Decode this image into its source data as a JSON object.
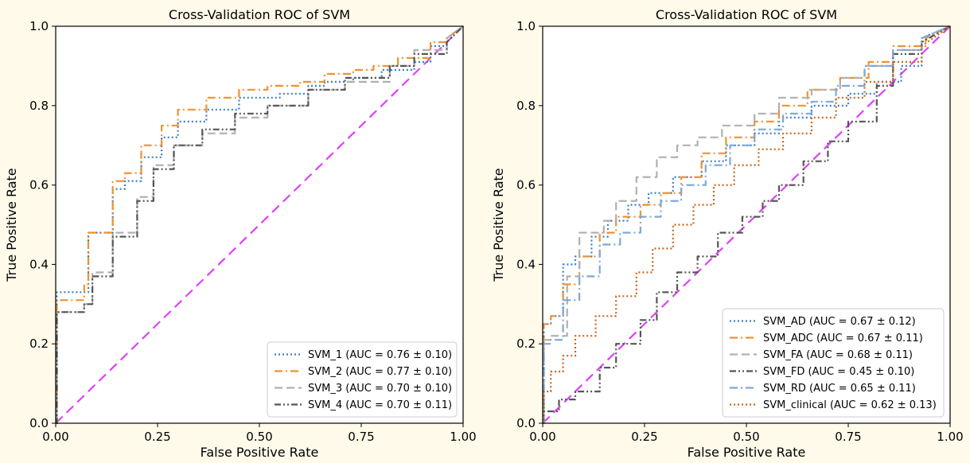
{
  "chart_data": [
    {
      "type": "line",
      "title": "Cross-Validation ROC of SVM",
      "xlabel": "False Positive Rate",
      "ylabel": "True Positive Rate",
      "xlim": [
        0,
        1
      ],
      "ylim": [
        0,
        1
      ],
      "xticks": [
        "0.00",
        "0.25",
        "0.50",
        "0.75",
        "1.00"
      ],
      "yticks": [
        "0.0",
        "0.2",
        "0.4",
        "0.6",
        "0.8",
        "1.0"
      ],
      "grid": false,
      "legend_position": "lower-right",
      "chance_line": {
        "color": "#e040fb",
        "x": [
          0,
          1
        ],
        "y": [
          0,
          1
        ]
      },
      "series": [
        {
          "name": "SVM_1 (AUC = 0.76 ± 0.10)",
          "color": "#3b7dc4",
          "dash": "dotted",
          "x": [
            0,
            0.003,
            0.003,
            0.04,
            0.04,
            0.08,
            0.08,
            0.14,
            0.14,
            0.17,
            0.17,
            0.21,
            0.21,
            0.26,
            0.26,
            0.3,
            0.3,
            0.37,
            0.37,
            0.45,
            0.45,
            0.55,
            0.55,
            0.62,
            0.62,
            0.66,
            0.66,
            0.73,
            0.73,
            0.8,
            0.8,
            0.88,
            0.88,
            0.92,
            0.92,
            0.96,
            0.96,
            1.0
          ],
          "y": [
            0,
            0,
            0.33,
            0.33,
            0.33,
            0.33,
            0.48,
            0.48,
            0.59,
            0.59,
            0.61,
            0.61,
            0.67,
            0.67,
            0.72,
            0.72,
            0.76,
            0.76,
            0.79,
            0.79,
            0.82,
            0.82,
            0.83,
            0.83,
            0.85,
            0.85,
            0.86,
            0.86,
            0.87,
            0.87,
            0.89,
            0.89,
            0.91,
            0.91,
            0.95,
            0.95,
            0.97,
            1.0
          ]
        },
        {
          "name": "SVM_2 (AUC = 0.77 ± 0.10)",
          "color": "#f0922e",
          "dash": "dashdot",
          "x": [
            0,
            0.003,
            0.003,
            0.07,
            0.07,
            0.08,
            0.08,
            0.14,
            0.14,
            0.17,
            0.17,
            0.21,
            0.21,
            0.26,
            0.26,
            0.3,
            0.3,
            0.37,
            0.37,
            0.45,
            0.45,
            0.52,
            0.52,
            0.6,
            0.6,
            0.66,
            0.66,
            0.73,
            0.73,
            0.78,
            0.78,
            0.84,
            0.84,
            0.92,
            0.92,
            0.96,
            0.96,
            1.0
          ],
          "y": [
            0,
            0,
            0.31,
            0.31,
            0.35,
            0.35,
            0.48,
            0.48,
            0.61,
            0.61,
            0.63,
            0.63,
            0.7,
            0.7,
            0.75,
            0.75,
            0.79,
            0.79,
            0.82,
            0.82,
            0.84,
            0.84,
            0.85,
            0.85,
            0.86,
            0.86,
            0.88,
            0.88,
            0.89,
            0.89,
            0.9,
            0.9,
            0.92,
            0.92,
            0.96,
            0.96,
            0.97,
            1.0
          ]
        },
        {
          "name": "SVM_3 (AUC = 0.70 ± 0.10)",
          "color": "#b0b0b0",
          "dash": "dashed",
          "x": [
            0,
            0.003,
            0.003,
            0.07,
            0.07,
            0.09,
            0.09,
            0.14,
            0.14,
            0.2,
            0.2,
            0.24,
            0.24,
            0.29,
            0.29,
            0.36,
            0.36,
            0.44,
            0.44,
            0.52,
            0.52,
            0.62,
            0.62,
            0.71,
            0.71,
            0.82,
            0.82,
            0.88,
            0.88,
            0.96,
            0.96,
            1.0
          ],
          "y": [
            0,
            0,
            0.28,
            0.28,
            0.3,
            0.3,
            0.38,
            0.38,
            0.48,
            0.48,
            0.57,
            0.57,
            0.65,
            0.65,
            0.7,
            0.7,
            0.73,
            0.73,
            0.77,
            0.77,
            0.8,
            0.8,
            0.84,
            0.84,
            0.86,
            0.86,
            0.9,
            0.9,
            0.94,
            0.94,
            0.97,
            1.0
          ]
        },
        {
          "name": "SVM_4 (AUC = 0.70 ± 0.11)",
          "color": "#555555",
          "dash": "dashdotdot",
          "x": [
            0,
            0.003,
            0.003,
            0.07,
            0.07,
            0.09,
            0.09,
            0.14,
            0.14,
            0.2,
            0.2,
            0.24,
            0.24,
            0.29,
            0.29,
            0.36,
            0.36,
            0.44,
            0.44,
            0.52,
            0.52,
            0.62,
            0.62,
            0.71,
            0.71,
            0.82,
            0.82,
            0.88,
            0.88,
            0.96,
            0.96,
            1.0
          ],
          "y": [
            0,
            0,
            0.28,
            0.28,
            0.3,
            0.3,
            0.37,
            0.37,
            0.47,
            0.47,
            0.56,
            0.56,
            0.64,
            0.64,
            0.7,
            0.7,
            0.74,
            0.74,
            0.78,
            0.78,
            0.8,
            0.8,
            0.84,
            0.84,
            0.87,
            0.87,
            0.9,
            0.9,
            0.93,
            0.93,
            0.96,
            1.0
          ]
        }
      ]
    },
    {
      "type": "line",
      "title": "Cross-Validation ROC of SVM",
      "xlabel": "False Positive Rate",
      "ylabel": "True Positive Rate",
      "xlim": [
        0,
        1
      ],
      "ylim": [
        0,
        1
      ],
      "xticks": [
        "0.00",
        "0.25",
        "0.50",
        "0.75",
        "1.00"
      ],
      "yticks": [
        "0.0",
        "0.2",
        "0.4",
        "0.6",
        "0.8",
        "1.0"
      ],
      "grid": false,
      "legend_position": "lower-right",
      "chance_line": {
        "color": "#e040fb",
        "x": [
          0,
          1
        ],
        "y": [
          0,
          1
        ]
      },
      "series": [
        {
          "name": "SVM_AD (AUC = 0.67 ± 0.12)",
          "color": "#3b7dc4",
          "dash": "dotted",
          "x": [
            0,
            0.003,
            0.003,
            0.02,
            0.02,
            0.05,
            0.05,
            0.08,
            0.08,
            0.12,
            0.12,
            0.16,
            0.16,
            0.21,
            0.21,
            0.26,
            0.26,
            0.32,
            0.32,
            0.39,
            0.39,
            0.45,
            0.45,
            0.52,
            0.52,
            0.58,
            0.58,
            0.66,
            0.66,
            0.75,
            0.75,
            0.82,
            0.82,
            0.88,
            0.88,
            0.93,
            0.93,
            1.0
          ],
          "y": [
            0,
            0,
            0.25,
            0.25,
            0.27,
            0.27,
            0.4,
            0.4,
            0.42,
            0.42,
            0.47,
            0.47,
            0.51,
            0.51,
            0.55,
            0.55,
            0.58,
            0.58,
            0.62,
            0.62,
            0.66,
            0.66,
            0.7,
            0.7,
            0.73,
            0.73,
            0.77,
            0.77,
            0.8,
            0.8,
            0.83,
            0.83,
            0.86,
            0.86,
            0.9,
            0.9,
            0.97,
            1.0
          ]
        },
        {
          "name": "SVM_ADC (AUC = 0.67 ± 0.11)",
          "color": "#f0922e",
          "dash": "dashdot",
          "x": [
            0,
            0.003,
            0.003,
            0.02,
            0.02,
            0.05,
            0.05,
            0.09,
            0.09,
            0.14,
            0.14,
            0.18,
            0.18,
            0.24,
            0.24,
            0.29,
            0.29,
            0.34,
            0.34,
            0.39,
            0.39,
            0.45,
            0.45,
            0.52,
            0.52,
            0.58,
            0.58,
            0.65,
            0.65,
            0.73,
            0.73,
            0.8,
            0.8,
            0.86,
            0.86,
            0.94,
            0.94,
            1.0
          ],
          "y": [
            0,
            0,
            0.25,
            0.25,
            0.27,
            0.27,
            0.35,
            0.35,
            0.42,
            0.42,
            0.48,
            0.48,
            0.52,
            0.52,
            0.55,
            0.55,
            0.58,
            0.58,
            0.62,
            0.62,
            0.68,
            0.68,
            0.72,
            0.72,
            0.76,
            0.76,
            0.8,
            0.8,
            0.84,
            0.84,
            0.87,
            0.87,
            0.91,
            0.91,
            0.95,
            0.95,
            0.97,
            1.0
          ]
        },
        {
          "name": "SVM_FA (AUC = 0.68 ± 0.11)",
          "color": "#b0b0b0",
          "dash": "dashed",
          "x": [
            0,
            0.003,
            0.003,
            0.02,
            0.02,
            0.06,
            0.06,
            0.09,
            0.09,
            0.15,
            0.15,
            0.18,
            0.18,
            0.23,
            0.23,
            0.28,
            0.28,
            0.33,
            0.33,
            0.38,
            0.38,
            0.44,
            0.44,
            0.52,
            0.52,
            0.58,
            0.58,
            0.66,
            0.66,
            0.73,
            0.73,
            0.79,
            0.79,
            0.86,
            0.86,
            0.93,
            0.93,
            1.0
          ],
          "y": [
            0,
            0,
            0.21,
            0.21,
            0.22,
            0.22,
            0.37,
            0.37,
            0.48,
            0.48,
            0.51,
            0.51,
            0.56,
            0.56,
            0.62,
            0.62,
            0.67,
            0.67,
            0.7,
            0.7,
            0.72,
            0.72,
            0.75,
            0.75,
            0.78,
            0.78,
            0.82,
            0.82,
            0.84,
            0.84,
            0.87,
            0.87,
            0.9,
            0.9,
            0.94,
            0.94,
            0.97,
            1.0
          ]
        },
        {
          "name": "SVM_FD (AUC = 0.45 ± 0.10)",
          "color": "#555555",
          "dash": "dashdotdot",
          "x": [
            0,
            0.003,
            0.003,
            0.04,
            0.04,
            0.08,
            0.08,
            0.14,
            0.14,
            0.18,
            0.18,
            0.24,
            0.24,
            0.28,
            0.28,
            0.33,
            0.33,
            0.38,
            0.38,
            0.43,
            0.43,
            0.49,
            0.49,
            0.54,
            0.54,
            0.58,
            0.58,
            0.64,
            0.64,
            0.7,
            0.7,
            0.75,
            0.75,
            0.82,
            0.82,
            0.86,
            0.86,
            0.93,
            0.93,
            1.0
          ],
          "y": [
            0,
            0,
            0.03,
            0.03,
            0.06,
            0.06,
            0.08,
            0.08,
            0.14,
            0.14,
            0.2,
            0.2,
            0.26,
            0.26,
            0.33,
            0.33,
            0.38,
            0.38,
            0.42,
            0.42,
            0.48,
            0.48,
            0.52,
            0.52,
            0.56,
            0.56,
            0.6,
            0.6,
            0.66,
            0.66,
            0.71,
            0.71,
            0.76,
            0.76,
            0.85,
            0.85,
            0.93,
            0.93,
            0.96,
            1.0
          ]
        },
        {
          "name": "SVM_RD (AUC = 0.65 ± 0.11)",
          "color": "#7da8d8",
          "dash": "dashdot",
          "x": [
            0,
            0.003,
            0.003,
            0.02,
            0.02,
            0.05,
            0.05,
            0.09,
            0.09,
            0.14,
            0.14,
            0.19,
            0.19,
            0.24,
            0.24,
            0.29,
            0.29,
            0.34,
            0.34,
            0.4,
            0.4,
            0.46,
            0.46,
            0.52,
            0.52,
            0.59,
            0.59,
            0.66,
            0.66,
            0.72,
            0.72,
            0.79,
            0.79,
            0.86,
            0.86,
            0.93,
            0.93,
            1.0
          ],
          "y": [
            0,
            0,
            0.2,
            0.2,
            0.21,
            0.21,
            0.31,
            0.31,
            0.37,
            0.37,
            0.45,
            0.45,
            0.48,
            0.48,
            0.52,
            0.52,
            0.56,
            0.56,
            0.6,
            0.6,
            0.65,
            0.65,
            0.7,
            0.7,
            0.74,
            0.74,
            0.78,
            0.78,
            0.81,
            0.81,
            0.85,
            0.85,
            0.9,
            0.9,
            0.94,
            0.94,
            0.97,
            1.0
          ]
        },
        {
          "name": "SVM_clinical (AUC = 0.62 ± 0.13)",
          "color": "#c8651a",
          "dash": "dotted",
          "x": [
            0,
            0.003,
            0.003,
            0.02,
            0.02,
            0.05,
            0.05,
            0.08,
            0.08,
            0.13,
            0.13,
            0.18,
            0.18,
            0.23,
            0.23,
            0.27,
            0.27,
            0.32,
            0.32,
            0.37,
            0.37,
            0.42,
            0.42,
            0.47,
            0.47,
            0.53,
            0.53,
            0.59,
            0.59,
            0.66,
            0.66,
            0.72,
            0.72,
            0.79,
            0.79,
            0.86,
            0.86,
            0.93,
            0.93,
            1.0
          ],
          "y": [
            0,
            0,
            0.08,
            0.08,
            0.13,
            0.13,
            0.17,
            0.17,
            0.22,
            0.22,
            0.27,
            0.27,
            0.32,
            0.32,
            0.38,
            0.38,
            0.44,
            0.44,
            0.5,
            0.5,
            0.55,
            0.55,
            0.6,
            0.6,
            0.65,
            0.65,
            0.69,
            0.69,
            0.73,
            0.73,
            0.77,
            0.77,
            0.82,
            0.82,
            0.86,
            0.86,
            0.91,
            0.91,
            0.95,
            1.0
          ]
        }
      ]
    }
  ]
}
